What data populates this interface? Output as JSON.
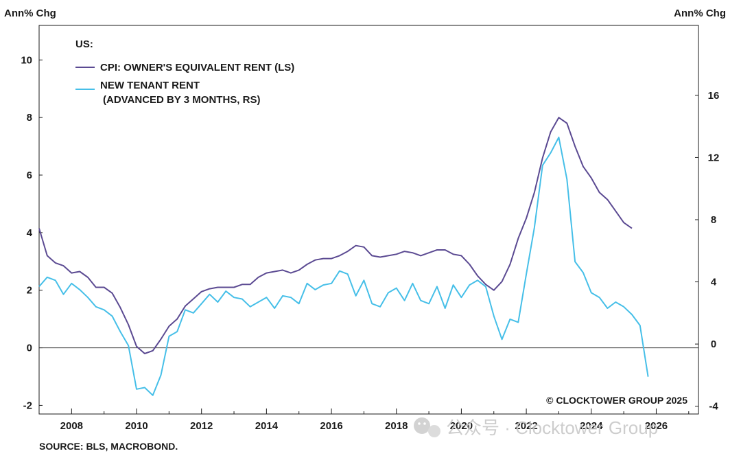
{
  "chart_data": {
    "type": "line",
    "left_axis_label": "Ann% Chg",
    "right_axis_label": "Ann% Chg",
    "legend_title": "US:",
    "x_ticks": [
      "2008",
      "2010",
      "2012",
      "2014",
      "2016",
      "2018",
      "2020",
      "2022",
      "2024",
      "2026"
    ],
    "xlim": [
      2007.0,
      2027.3
    ],
    "y_left_ticks": [
      "10",
      "8",
      "6",
      "4",
      "2",
      "0",
      "-2"
    ],
    "ylim_left": [
      -2.3,
      11.2
    ],
    "y_right_ticks": [
      "16",
      "12",
      "8",
      "4",
      "0",
      "-4"
    ],
    "ylim_right": [
      -4.5,
      20.5
    ],
    "zero_line": true,
    "legend_position": "top-left",
    "series": [
      {
        "name": "CPI: OWNER'S EQUIVALENT RENT (LS)",
        "axis": "left",
        "color": "#5b4a92",
        "points": [
          [
            2007.0,
            4.15
          ],
          [
            2007.25,
            3.2
          ],
          [
            2007.5,
            2.95
          ],
          [
            2007.75,
            2.85
          ],
          [
            2008.0,
            2.6
          ],
          [
            2008.25,
            2.65
          ],
          [
            2008.5,
            2.45
          ],
          [
            2008.75,
            2.1
          ],
          [
            2009.0,
            2.1
          ],
          [
            2009.25,
            1.9
          ],
          [
            2009.5,
            1.4
          ],
          [
            2009.75,
            0.8
          ],
          [
            2010.0,
            0.05
          ],
          [
            2010.25,
            -0.2
          ],
          [
            2010.5,
            -0.1
          ],
          [
            2010.75,
            0.3
          ],
          [
            2011.0,
            0.75
          ],
          [
            2011.25,
            1.0
          ],
          [
            2011.5,
            1.45
          ],
          [
            2011.75,
            1.7
          ],
          [
            2012.0,
            1.95
          ],
          [
            2012.25,
            2.05
          ],
          [
            2012.5,
            2.1
          ],
          [
            2012.75,
            2.1
          ],
          [
            2013.0,
            2.1
          ],
          [
            2013.25,
            2.2
          ],
          [
            2013.5,
            2.2
          ],
          [
            2013.75,
            2.45
          ],
          [
            2014.0,
            2.6
          ],
          [
            2014.25,
            2.65
          ],
          [
            2014.5,
            2.7
          ],
          [
            2014.75,
            2.6
          ],
          [
            2015.0,
            2.7
          ],
          [
            2015.25,
            2.9
          ],
          [
            2015.5,
            3.05
          ],
          [
            2015.75,
            3.1
          ],
          [
            2016.0,
            3.1
          ],
          [
            2016.25,
            3.2
          ],
          [
            2016.5,
            3.35
          ],
          [
            2016.75,
            3.55
          ],
          [
            2017.0,
            3.5
          ],
          [
            2017.25,
            3.2
          ],
          [
            2017.5,
            3.15
          ],
          [
            2017.75,
            3.2
          ],
          [
            2018.0,
            3.25
          ],
          [
            2018.25,
            3.35
          ],
          [
            2018.5,
            3.3
          ],
          [
            2018.75,
            3.2
          ],
          [
            2019.0,
            3.3
          ],
          [
            2019.25,
            3.4
          ],
          [
            2019.5,
            3.4
          ],
          [
            2019.75,
            3.25
          ],
          [
            2020.0,
            3.2
          ],
          [
            2020.25,
            2.9
          ],
          [
            2020.5,
            2.5
          ],
          [
            2020.75,
            2.2
          ],
          [
            2021.0,
            2.0
          ],
          [
            2021.25,
            2.3
          ],
          [
            2021.5,
            2.9
          ],
          [
            2021.75,
            3.8
          ],
          [
            2022.0,
            4.5
          ],
          [
            2022.25,
            5.4
          ],
          [
            2022.5,
            6.6
          ],
          [
            2022.75,
            7.5
          ],
          [
            2023.0,
            8.0
          ],
          [
            2023.25,
            7.8
          ],
          [
            2023.5,
            7.0
          ],
          [
            2023.75,
            6.3
          ],
          [
            2024.0,
            5.9
          ],
          [
            2024.25,
            5.4
          ],
          [
            2024.5,
            5.15
          ],
          [
            2024.75,
            4.75
          ],
          [
            2025.0,
            4.35
          ],
          [
            2025.25,
            4.15
          ]
        ]
      },
      {
        "name": "NEW TENANT RENT\n(ADVANCED BY 3 MONTHS, RS)",
        "axis": "right",
        "color": "#46bfe8",
        "points": [
          [
            2007.0,
            3.7
          ],
          [
            2007.25,
            4.3
          ],
          [
            2007.5,
            4.1
          ],
          [
            2007.75,
            3.2
          ],
          [
            2008.0,
            3.9
          ],
          [
            2008.25,
            3.5
          ],
          [
            2008.5,
            3.0
          ],
          [
            2008.75,
            2.4
          ],
          [
            2009.0,
            2.2
          ],
          [
            2009.25,
            1.8
          ],
          [
            2009.5,
            0.8
          ],
          [
            2009.75,
            -0.1
          ],
          [
            2010.0,
            -2.9
          ],
          [
            2010.25,
            -2.8
          ],
          [
            2010.5,
            -3.3
          ],
          [
            2010.75,
            -2.0
          ],
          [
            2011.0,
            0.5
          ],
          [
            2011.25,
            0.8
          ],
          [
            2011.5,
            2.2
          ],
          [
            2011.75,
            2.0
          ],
          [
            2012.0,
            2.6
          ],
          [
            2012.25,
            3.2
          ],
          [
            2012.5,
            2.7
          ],
          [
            2012.75,
            3.4
          ],
          [
            2013.0,
            3.0
          ],
          [
            2013.25,
            2.9
          ],
          [
            2013.5,
            2.4
          ],
          [
            2013.75,
            2.7
          ],
          [
            2014.0,
            3.0
          ],
          [
            2014.25,
            2.3
          ],
          [
            2014.5,
            3.1
          ],
          [
            2014.75,
            3.0
          ],
          [
            2015.0,
            2.6
          ],
          [
            2015.25,
            3.9
          ],
          [
            2015.5,
            3.5
          ],
          [
            2015.75,
            3.8
          ],
          [
            2016.0,
            3.9
          ],
          [
            2016.25,
            4.7
          ],
          [
            2016.5,
            4.5
          ],
          [
            2016.75,
            3.1
          ],
          [
            2017.0,
            4.1
          ],
          [
            2017.25,
            2.6
          ],
          [
            2017.5,
            2.4
          ],
          [
            2017.75,
            3.3
          ],
          [
            2018.0,
            3.6
          ],
          [
            2018.25,
            2.8
          ],
          [
            2018.5,
            3.9
          ],
          [
            2018.75,
            2.8
          ],
          [
            2019.0,
            2.6
          ],
          [
            2019.25,
            3.7
          ],
          [
            2019.5,
            2.3
          ],
          [
            2019.75,
            3.8
          ],
          [
            2020.0,
            3.0
          ],
          [
            2020.25,
            3.8
          ],
          [
            2020.5,
            4.1
          ],
          [
            2020.75,
            3.7
          ],
          [
            2021.0,
            1.8
          ],
          [
            2021.25,
            0.3
          ],
          [
            2021.5,
            1.6
          ],
          [
            2021.75,
            1.4
          ],
          [
            2022.0,
            4.5
          ],
          [
            2022.25,
            7.5
          ],
          [
            2022.5,
            11.5
          ],
          [
            2022.75,
            12.3
          ],
          [
            2023.0,
            13.3
          ],
          [
            2023.25,
            10.6
          ],
          [
            2023.5,
            5.3
          ],
          [
            2023.75,
            4.6
          ],
          [
            2024.0,
            3.3
          ],
          [
            2024.25,
            3.0
          ],
          [
            2024.5,
            2.3
          ],
          [
            2024.75,
            2.7
          ],
          [
            2025.0,
            2.4
          ],
          [
            2025.25,
            1.9
          ],
          [
            2025.5,
            1.2
          ],
          [
            2025.75,
            -2.1
          ]
        ]
      }
    ],
    "source_note": "SOURCE: BLS, MACROBOND.",
    "copyright_note": "© CLOCKTOWER GROUP 2025",
    "watermark": "公众号 · Clocktower Group"
  }
}
